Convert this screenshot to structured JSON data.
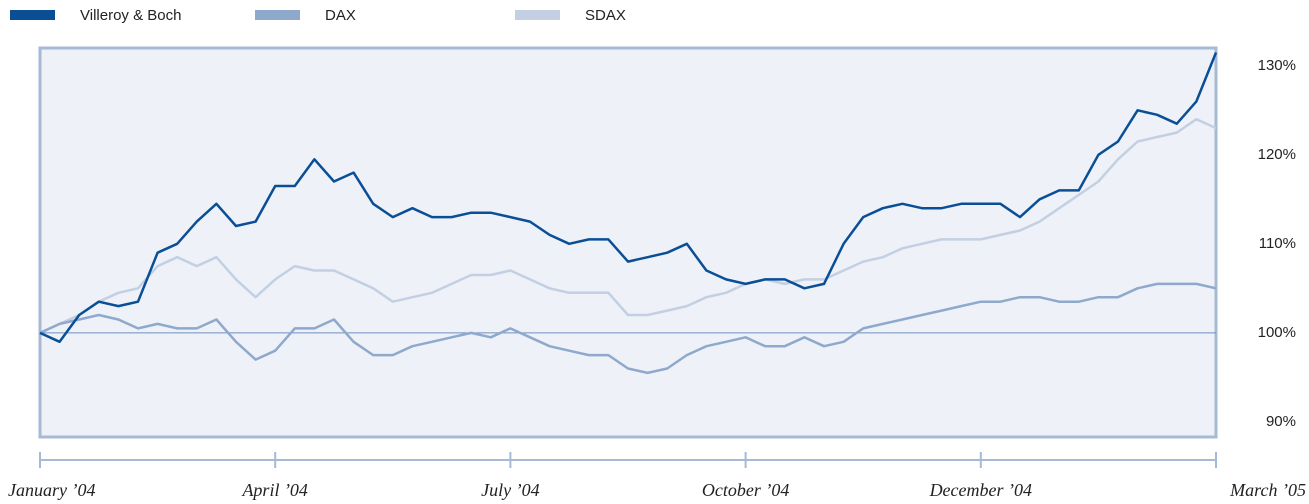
{
  "chart_data": {
    "type": "line",
    "x": [
      0,
      1,
      2,
      3,
      4,
      5,
      6,
      7,
      8,
      9,
      10,
      11,
      12,
      13,
      14,
      15,
      16,
      17,
      18,
      19,
      20,
      21,
      22,
      23,
      24,
      25,
      26,
      27,
      28,
      29,
      30,
      31,
      32,
      33,
      34,
      35,
      36,
      37,
      38,
      39,
      40,
      41,
      42,
      43,
      44,
      45,
      46,
      47,
      48,
      49,
      50,
      51,
      52,
      53,
      54,
      55,
      56,
      57,
      58,
      59,
      60
    ],
    "xlim": [
      0,
      60
    ],
    "xticks": [
      {
        "value": 0,
        "label": "January ’04"
      },
      {
        "value": 12,
        "label": "April ’04"
      },
      {
        "value": 24,
        "label": "July ’04"
      },
      {
        "value": 36,
        "label": "October ’04"
      },
      {
        "value": 48,
        "label": "December ’04"
      },
      {
        "value": 60,
        "label": "March ’05"
      }
    ],
    "ylim": [
      88.3,
      132
    ],
    "yticks": [
      {
        "value": 90,
        "label": "90%"
      },
      {
        "value": 100,
        "label": "100%"
      },
      {
        "value": 110,
        "label": "110%"
      },
      {
        "value": 120,
        "label": "120%"
      },
      {
        "value": 130,
        "label": "130%"
      }
    ],
    "baseline": 100,
    "series": [
      {
        "name": "Villeroy & Boch",
        "color": "#0a4f96",
        "values": [
          100,
          99,
          102,
          103.5,
          103,
          103.5,
          109,
          110,
          112.5,
          114.5,
          112,
          112.5,
          116.5,
          116.5,
          119.5,
          117,
          118,
          114.5,
          113,
          114,
          113,
          113,
          113.5,
          113.5,
          113,
          112.5,
          111,
          110,
          110.5,
          110.5,
          108,
          108.5,
          109,
          110,
          107,
          106,
          105.5,
          106,
          106,
          105,
          105.5,
          110,
          113,
          114,
          114.5,
          114,
          114,
          114.5,
          114.5,
          114.5,
          113,
          115,
          116,
          116,
          120,
          121.5,
          125,
          124.5,
          123.5,
          126,
          131.5
        ]
      },
      {
        "name": "DAX",
        "color": "#8fa9cc",
        "values": [
          100,
          101,
          101.5,
          102,
          101.5,
          100.5,
          101,
          100.5,
          100.5,
          101.5,
          99,
          97,
          98,
          100.5,
          100.5,
          101.5,
          99,
          97.5,
          97.5,
          98.5,
          99,
          99.5,
          100,
          99.5,
          100.5,
          99.5,
          98.5,
          98,
          97.5,
          97.5,
          96,
          95.5,
          96,
          97.5,
          98.5,
          99,
          99.5,
          98.5,
          98.5,
          99.5,
          98.5,
          99,
          100.5,
          101,
          101.5,
          102,
          102.5,
          103,
          103.5,
          103.5,
          104,
          104,
          103.5,
          103.5,
          104,
          104,
          105,
          105.5,
          105.5,
          105.5,
          105
        ]
      },
      {
        "name": "SDAX",
        "color": "#c3cfe3",
        "values": [
          100,
          101,
          102,
          103.5,
          104.5,
          105,
          107.5,
          108.5,
          107.5,
          108.5,
          106,
          104,
          106,
          107.5,
          107,
          107,
          106,
          105,
          103.5,
          104,
          104.5,
          105.5,
          106.5,
          106.5,
          107,
          106,
          105,
          104.5,
          104.5,
          104.5,
          102,
          102,
          102.5,
          103,
          104,
          104.5,
          105.5,
          106,
          105.5,
          106,
          106,
          107,
          108,
          108.5,
          109.5,
          110,
          110.5,
          110.5,
          110.5,
          111,
          111.5,
          112.5,
          114,
          115.5,
          117,
          119.5,
          121.5,
          122,
          122.5,
          124,
          123
        ]
      }
    ]
  }
}
